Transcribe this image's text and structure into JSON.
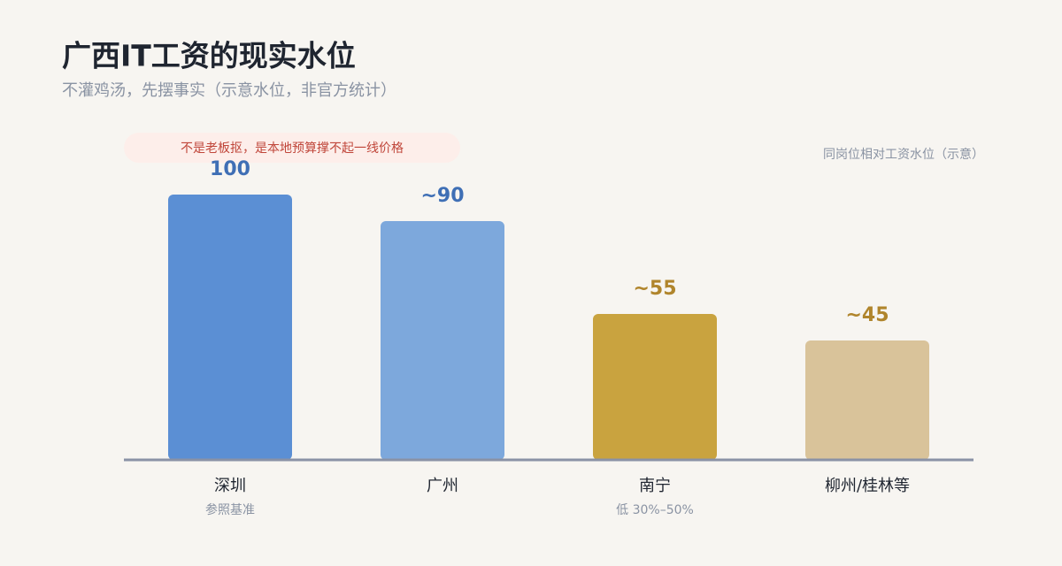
{
  "chart_data": {
    "type": "bar",
    "title": "广西IT工资的现实水位",
    "subtitle": "不灌鸡汤，先摆事实（示意水位，非官方统计）",
    "annotation": "不是老板抠，是本地预算撑不起一线价格",
    "y_label": "同岗位相对工资水位（示意）",
    "categories": [
      "深圳",
      "广州",
      "南宁",
      "柳州/桂林等"
    ],
    "category_notes": [
      "参照基准",
      null,
      "低 30%–50%",
      null
    ],
    "values": [
      100,
      90,
      55,
      45
    ],
    "value_labels": [
      "100",
      "~90",
      "~55",
      "~45"
    ],
    "colors": [
      "#5b8fd4",
      "#7da8dc",
      "#c9a33f",
      "#d9c39a"
    ],
    "value_label_colors": [
      "#3f6fb5",
      "#3f6fb5",
      "#b0852c",
      "#b0852c"
    ],
    "ylim": [
      0,
      100
    ]
  }
}
